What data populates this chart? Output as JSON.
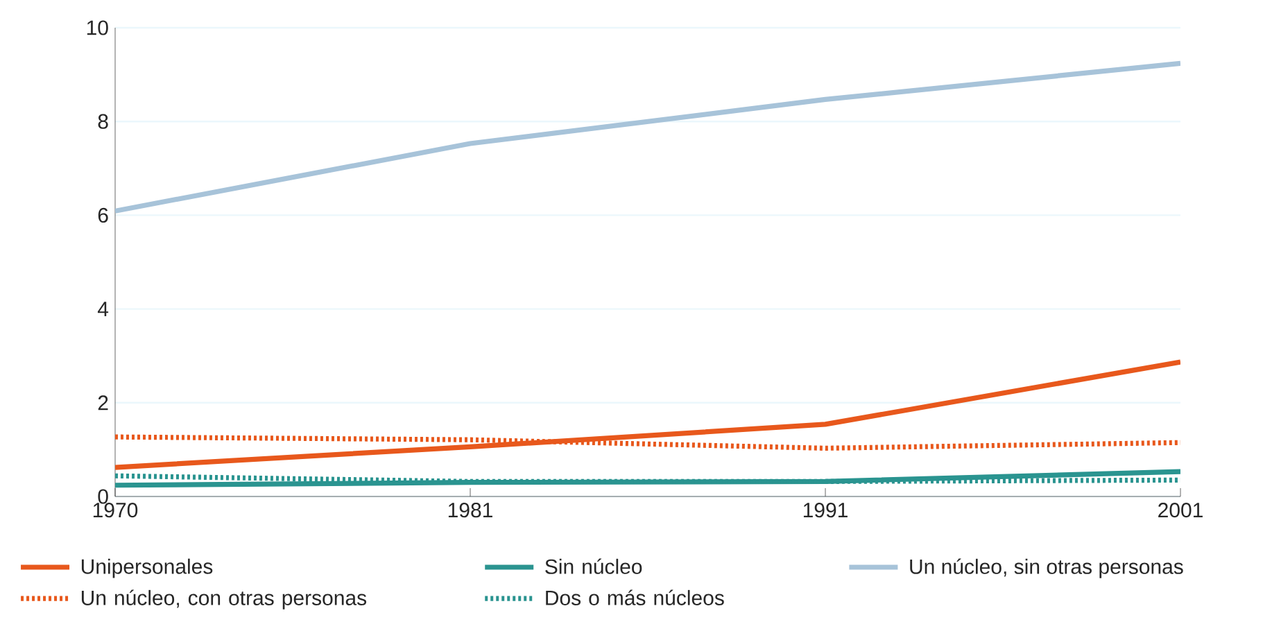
{
  "chart_data": {
    "type": "line",
    "categories": [
      "1970",
      "1981",
      "1991",
      "2001"
    ],
    "ylim": [
      0,
      10
    ],
    "yticks": [
      0,
      2,
      4,
      6,
      8,
      10
    ],
    "grid": "y",
    "legend": "bottom",
    "series": [
      {
        "name": "Unipersonales",
        "color": "#e8581c",
        "line_style": "solid",
        "values": [
          0.62,
          1.06,
          1.54,
          2.87
        ]
      },
      {
        "name": "Sin núcleo",
        "color": "#2a9490",
        "line_style": "solid",
        "values": [
          0.24,
          0.3,
          0.32,
          0.53
        ]
      },
      {
        "name": "Un núcleo, sin otras personas",
        "color": "#a7c3d9",
        "line_style": "solid",
        "values": [
          6.09,
          7.53,
          8.47,
          9.24
        ]
      },
      {
        "name": "Un núcleo, con otras personas",
        "color": "#e8581c",
        "line_style": "dotted",
        "values": [
          1.27,
          1.21,
          1.03,
          1.15
        ]
      },
      {
        "name": "Dos o más núcleos",
        "color": "#2a9490",
        "line_style": "dotted",
        "values": [
          0.44,
          0.32,
          0.32,
          0.35
        ]
      }
    ]
  }
}
